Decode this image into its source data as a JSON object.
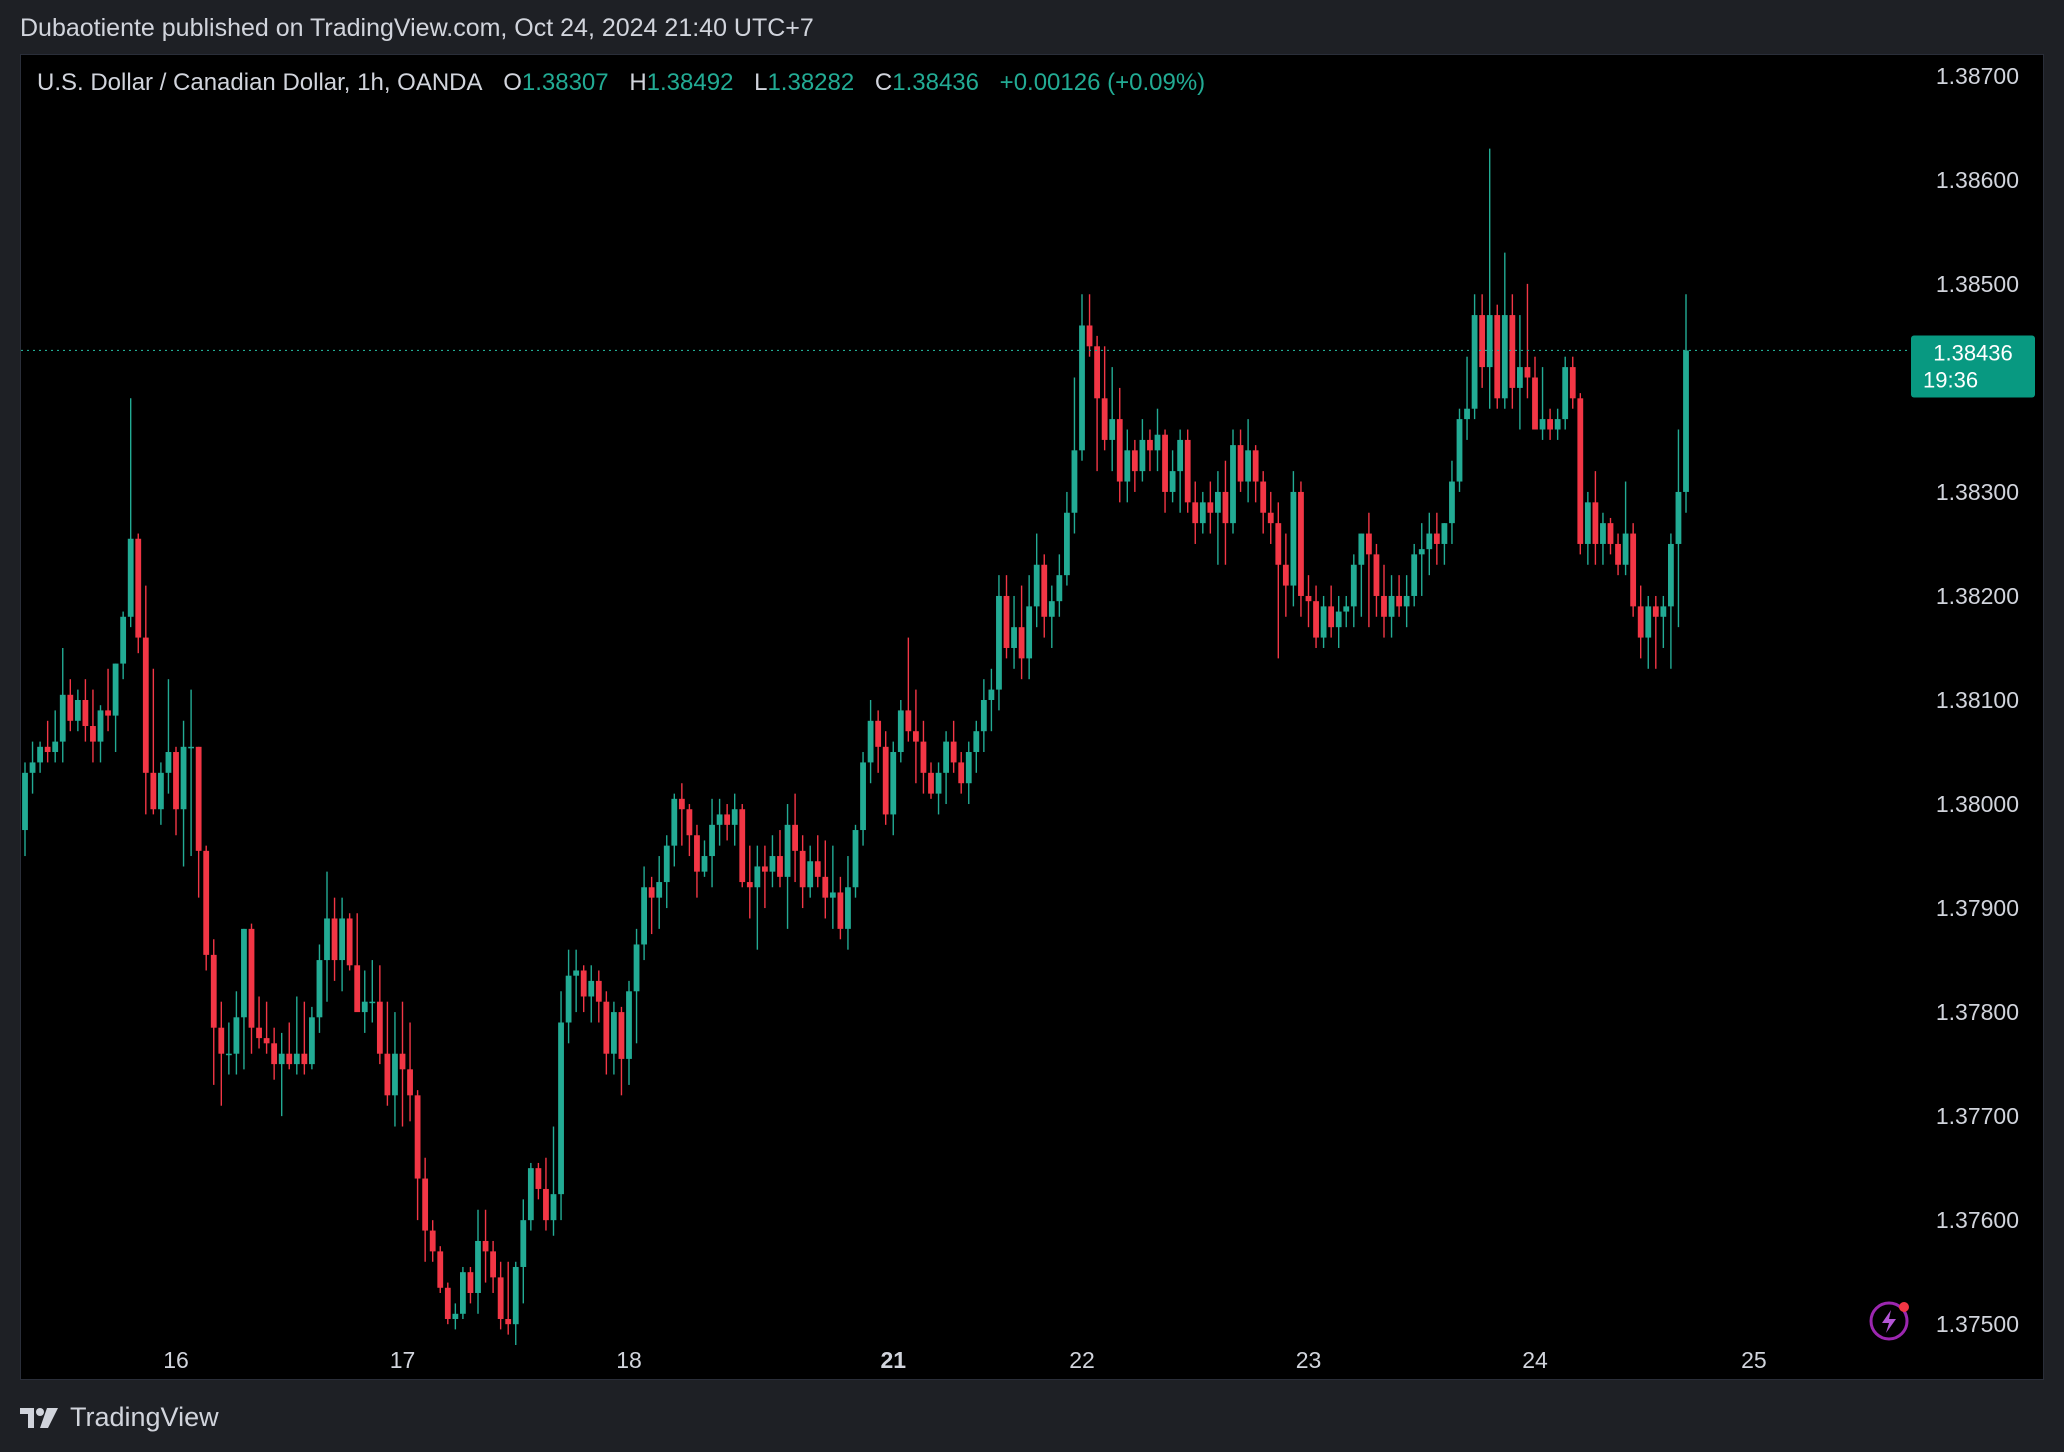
{
  "header": {
    "publisher_line": "Dubaotiente published on TradingView.com, Oct 24, 2024 21:40 UTC+7"
  },
  "legend": {
    "symbol": "U.S. Dollar / Canadian Dollar, 1h, OANDA",
    "open_label": "O",
    "open": "1.38307",
    "high_label": "H",
    "high": "1.38492",
    "low_label": "L",
    "low": "1.38282",
    "close_label": "C",
    "close": "1.38436",
    "change": "+0.00126 (+0.09%)"
  },
  "price_tag": {
    "price": "1.38436",
    "countdown": "19:36"
  },
  "footer": {
    "brand": "TradingView"
  },
  "colors": {
    "up": "#22ab94",
    "down": "#f23645",
    "background": "#000000",
    "text": "#d1d4dc"
  },
  "icons": {
    "footer_logo": "tradingview-logo-icon",
    "replay": "lightning-bolt-icon"
  },
  "chart_data": {
    "type": "candlestick",
    "interval": "1h",
    "ylim": [
      1.3748,
      1.3872
    ],
    "y_ticks": [
      "1.38700",
      "1.38600",
      "1.38500",
      "1.38400",
      "1.38300",
      "1.38200",
      "1.38100",
      "1.38000",
      "1.37900",
      "1.37800",
      "1.37700",
      "1.37600",
      "1.37500"
    ],
    "x_ticks": [
      {
        "label": "16",
        "bar": 20,
        "bold": false
      },
      {
        "label": "17",
        "bar": 50,
        "bold": false
      },
      {
        "label": "18",
        "bar": 80,
        "bold": false
      },
      {
        "label": "21",
        "bar": 115,
        "bold": true
      },
      {
        "label": "22",
        "bar": 140,
        "bold": false
      },
      {
        "label": "23",
        "bar": 170,
        "bold": false
      },
      {
        "label": "24",
        "bar": 200,
        "bold": false
      },
      {
        "label": "25",
        "bar": 229,
        "bold": false
      }
    ],
    "last_price": 1.38436,
    "grid": false,
    "candles": [
      [
        1.37975,
        1.3804,
        1.3795,
        1.3803
      ],
      [
        1.3803,
        1.3806,
        1.3801,
        1.3804
      ],
      [
        1.3804,
        1.3806,
        1.3803,
        1.38055
      ],
      [
        1.38055,
        1.3808,
        1.3804,
        1.3805
      ],
      [
        1.3805,
        1.3809,
        1.3804,
        1.3806
      ],
      [
        1.3806,
        1.3815,
        1.3804,
        1.38105
      ],
      [
        1.38105,
        1.3812,
        1.3807,
        1.3808
      ],
      [
        1.3808,
        1.3811,
        1.3807,
        1.381
      ],
      [
        1.381,
        1.3812,
        1.3806,
        1.38075
      ],
      [
        1.38075,
        1.3811,
        1.3804,
        1.3806
      ],
      [
        1.3806,
        1.38095,
        1.3804,
        1.3809
      ],
      [
        1.3809,
        1.3813,
        1.3807,
        1.38085
      ],
      [
        1.38085,
        1.38135,
        1.3805,
        1.38135
      ],
      [
        1.38135,
        1.38185,
        1.3812,
        1.3818
      ],
      [
        1.3818,
        1.3839,
        1.3817,
        1.38255
      ],
      [
        1.38255,
        1.3826,
        1.38145,
        1.3816
      ],
      [
        1.3816,
        1.3821,
        1.3799,
        1.3803
      ],
      [
        1.3803,
        1.3813,
        1.3799,
        1.37995
      ],
      [
        1.37995,
        1.3804,
        1.3798,
        1.3803
      ],
      [
        1.3803,
        1.3812,
        1.3801,
        1.3805
      ],
      [
        1.3805,
        1.38055,
        1.3797,
        1.37995
      ],
      [
        1.37995,
        1.3808,
        1.3794,
        1.38055
      ],
      [
        1.38055,
        1.3811,
        1.3795,
        1.38055
      ],
      [
        1.38055,
        1.38055,
        1.3791,
        1.37955
      ],
      [
        1.37955,
        1.3796,
        1.3784,
        1.37855
      ],
      [
        1.37855,
        1.3787,
        1.3773,
        1.37785
      ],
      [
        1.37785,
        1.3781,
        1.3771,
        1.3776
      ],
      [
        1.3776,
        1.3779,
        1.3774,
        1.3776
      ],
      [
        1.3776,
        1.3782,
        1.3774,
        1.37795
      ],
      [
        1.37795,
        1.3788,
        1.37745,
        1.3788
      ],
      [
        1.3788,
        1.37885,
        1.3776,
        1.37785
      ],
      [
        1.37785,
        1.37815,
        1.37765,
        1.37775
      ],
      [
        1.37775,
        1.3781,
        1.3776,
        1.3777
      ],
      [
        1.3777,
        1.37785,
        1.37735,
        1.3775
      ],
      [
        1.3775,
        1.3778,
        1.377,
        1.3776
      ],
      [
        1.3776,
        1.3779,
        1.37745,
        1.3775
      ],
      [
        1.3775,
        1.37815,
        1.3774,
        1.3776
      ],
      [
        1.3776,
        1.3781,
        1.3774,
        1.3775
      ],
      [
        1.3775,
        1.37805,
        1.37745,
        1.37795
      ],
      [
        1.37795,
        1.37865,
        1.3778,
        1.3785
      ],
      [
        1.3785,
        1.37935,
        1.3781,
        1.3789
      ],
      [
        1.3789,
        1.3791,
        1.3783,
        1.3785
      ],
      [
        1.3785,
        1.3791,
        1.3782,
        1.3789
      ],
      [
        1.3789,
        1.37895,
        1.3784,
        1.37845
      ],
      [
        1.37845,
        1.37895,
        1.3781,
        1.378
      ],
      [
        1.378,
        1.3784,
        1.3778,
        1.3781
      ],
      [
        1.3781,
        1.3785,
        1.3779,
        1.3781
      ],
      [
        1.3781,
        1.37845,
        1.3775,
        1.3776
      ],
      [
        1.3776,
        1.3781,
        1.3771,
        1.3772
      ],
      [
        1.3772,
        1.378,
        1.3769,
        1.3776
      ],
      [
        1.3776,
        1.3781,
        1.3769,
        1.37745
      ],
      [
        1.37745,
        1.3779,
        1.37695,
        1.3772
      ],
      [
        1.3772,
        1.37725,
        1.376,
        1.3764
      ],
      [
        1.3764,
        1.3766,
        1.3756,
        1.3759
      ],
      [
        1.3759,
        1.376,
        1.3756,
        1.3757
      ],
      [
        1.3757,
        1.37575,
        1.3753,
        1.37535
      ],
      [
        1.37535,
        1.3754,
        1.375,
        1.37505
      ],
      [
        1.37505,
        1.3752,
        1.37495,
        1.3751
      ],
      [
        1.3751,
        1.37555,
        1.37505,
        1.3755
      ],
      [
        1.3755,
        1.37555,
        1.3752,
        1.3753
      ],
      [
        1.3753,
        1.3761,
        1.3751,
        1.3758
      ],
      [
        1.3758,
        1.3761,
        1.3754,
        1.3757
      ],
      [
        1.3757,
        1.3758,
        1.3753,
        1.37545
      ],
      [
        1.37545,
        1.3756,
        1.37495,
        1.37505
      ],
      [
        1.37505,
        1.3756,
        1.3749,
        1.375
      ],
      [
        1.375,
        1.3756,
        1.3748,
        1.37555
      ],
      [
        1.37555,
        1.3762,
        1.3752,
        1.376
      ],
      [
        1.376,
        1.37655,
        1.3759,
        1.3765
      ],
      [
        1.3765,
        1.37655,
        1.3762,
        1.3763
      ],
      [
        1.3763,
        1.3766,
        1.3759,
        1.376
      ],
      [
        1.376,
        1.3769,
        1.37585,
        1.37625
      ],
      [
        1.37625,
        1.3782,
        1.376,
        1.3779
      ],
      [
        1.3779,
        1.3786,
        1.3777,
        1.37835
      ],
      [
        1.37835,
        1.3786,
        1.378,
        1.3784
      ],
      [
        1.3784,
        1.37845,
        1.378,
        1.37815
      ],
      [
        1.37815,
        1.37845,
        1.3779,
        1.3783
      ],
      [
        1.3783,
        1.3784,
        1.3779,
        1.3781
      ],
      [
        1.3781,
        1.3782,
        1.3774,
        1.3776
      ],
      [
        1.3776,
        1.3781,
        1.3774,
        1.378
      ],
      [
        1.378,
        1.37805,
        1.3772,
        1.37755
      ],
      [
        1.37755,
        1.3783,
        1.3773,
        1.3782
      ],
      [
        1.3782,
        1.3788,
        1.3777,
        1.37865
      ],
      [
        1.37865,
        1.3794,
        1.3785,
        1.3792
      ],
      [
        1.3792,
        1.3793,
        1.37875,
        1.3791
      ],
      [
        1.3791,
        1.3795,
        1.3788,
        1.37925
      ],
      [
        1.37925,
        1.3797,
        1.379,
        1.3796
      ],
      [
        1.3796,
        1.3801,
        1.3794,
        1.38005
      ],
      [
        1.38005,
        1.3802,
        1.3796,
        1.37995
      ],
      [
        1.37995,
        1.38,
        1.3795,
        1.3797
      ],
      [
        1.3797,
        1.3798,
        1.3791,
        1.37935
      ],
      [
        1.37935,
        1.37965,
        1.3793,
        1.3795
      ],
      [
        1.3795,
        1.38005,
        1.3792,
        1.3798
      ],
      [
        1.3798,
        1.38005,
        1.3796,
        1.3799
      ],
      [
        1.3799,
        1.38,
        1.37965,
        1.3798
      ],
      [
        1.3798,
        1.3801,
        1.3796,
        1.37995
      ],
      [
        1.37995,
        1.38,
        1.3792,
        1.37925
      ],
      [
        1.37925,
        1.3796,
        1.3789,
        1.3792
      ],
      [
        1.3792,
        1.3796,
        1.3786,
        1.3794
      ],
      [
        1.3794,
        1.3796,
        1.379,
        1.37935
      ],
      [
        1.37935,
        1.3797,
        1.3792,
        1.3795
      ],
      [
        1.3795,
        1.37975,
        1.3792,
        1.3793
      ],
      [
        1.3793,
        1.38,
        1.3788,
        1.3798
      ],
      [
        1.3798,
        1.3801,
        1.37925,
        1.37955
      ],
      [
        1.37955,
        1.3797,
        1.379,
        1.3792
      ],
      [
        1.3792,
        1.3796,
        1.3791,
        1.37945
      ],
      [
        1.37945,
        1.3797,
        1.3792,
        1.3793
      ],
      [
        1.3793,
        1.37965,
        1.3789,
        1.3791
      ],
      [
        1.3791,
        1.3796,
        1.3788,
        1.37915
      ],
      [
        1.37915,
        1.3793,
        1.3787,
        1.3788
      ],
      [
        1.3788,
        1.3795,
        1.3786,
        1.3792
      ],
      [
        1.3792,
        1.3798,
        1.3791,
        1.37975
      ],
      [
        1.37975,
        1.3805,
        1.3796,
        1.3804
      ],
      [
        1.3804,
        1.381,
        1.3802,
        1.3808
      ],
      [
        1.3808,
        1.3809,
        1.3803,
        1.38055
      ],
      [
        1.38055,
        1.3807,
        1.3798,
        1.3799
      ],
      [
        1.3799,
        1.3806,
        1.3797,
        1.3805
      ],
      [
        1.3805,
        1.381,
        1.3804,
        1.3809
      ],
      [
        1.3809,
        1.3816,
        1.3806,
        1.3807
      ],
      [
        1.3807,
        1.3811,
        1.3802,
        1.3806
      ],
      [
        1.3806,
        1.3808,
        1.3801,
        1.3803
      ],
      [
        1.3803,
        1.3804,
        1.38005,
        1.3801
      ],
      [
        1.3801,
        1.3804,
        1.3799,
        1.3803
      ],
      [
        1.3803,
        1.3807,
        1.38,
        1.3806
      ],
      [
        1.3806,
        1.3808,
        1.3803,
        1.3804
      ],
      [
        1.3804,
        1.3805,
        1.3801,
        1.3802
      ],
      [
        1.3802,
        1.3806,
        1.38,
        1.3805
      ],
      [
        1.3805,
        1.3808,
        1.3803,
        1.3807
      ],
      [
        1.3807,
        1.3812,
        1.3805,
        1.381
      ],
      [
        1.381,
        1.3813,
        1.3807,
        1.3811
      ],
      [
        1.3811,
        1.3822,
        1.3809,
        1.382
      ],
      [
        1.382,
        1.3822,
        1.3814,
        1.3815
      ],
      [
        1.3815,
        1.382,
        1.3813,
        1.3817
      ],
      [
        1.3817,
        1.3821,
        1.3812,
        1.3814
      ],
      [
        1.3814,
        1.3822,
        1.3812,
        1.3819
      ],
      [
        1.3819,
        1.3826,
        1.3817,
        1.3823
      ],
      [
        1.3823,
        1.3824,
        1.3816,
        1.3818
      ],
      [
        1.3818,
        1.3821,
        1.3815,
        1.38195
      ],
      [
        1.38195,
        1.3824,
        1.3818,
        1.3822
      ],
      [
        1.3822,
        1.383,
        1.3821,
        1.3828
      ],
      [
        1.3828,
        1.3841,
        1.3826,
        1.3834
      ],
      [
        1.3834,
        1.3849,
        1.3833,
        1.3846
      ],
      [
        1.3846,
        1.3849,
        1.3843,
        1.3844
      ],
      [
        1.3844,
        1.3845,
        1.3832,
        1.3839
      ],
      [
        1.3839,
        1.3844,
        1.3834,
        1.3835
      ],
      [
        1.3835,
        1.3842,
        1.3832,
        1.3837
      ],
      [
        1.3837,
        1.384,
        1.3829,
        1.3831
      ],
      [
        1.3831,
        1.3836,
        1.3829,
        1.3834
      ],
      [
        1.3834,
        1.3835,
        1.383,
        1.3832
      ],
      [
        1.3832,
        1.3837,
        1.3831,
        1.3835
      ],
      [
        1.3835,
        1.3836,
        1.3832,
        1.3834
      ],
      [
        1.3834,
        1.3838,
        1.3832,
        1.38355
      ],
      [
        1.38355,
        1.3836,
        1.3828,
        1.383
      ],
      [
        1.383,
        1.3834,
        1.3829,
        1.3832
      ],
      [
        1.3832,
        1.3836,
        1.3828,
        1.3835
      ],
      [
        1.3835,
        1.3836,
        1.3828,
        1.3829
      ],
      [
        1.3829,
        1.3831,
        1.3825,
        1.3827
      ],
      [
        1.3827,
        1.383,
        1.3826,
        1.3829
      ],
      [
        1.3829,
        1.3831,
        1.3826,
        1.3828
      ],
      [
        1.3828,
        1.3832,
        1.3823,
        1.383
      ],
      [
        1.383,
        1.3833,
        1.3823,
        1.3827
      ],
      [
        1.3827,
        1.3836,
        1.3826,
        1.38345
      ],
      [
        1.38345,
        1.3836,
        1.383,
        1.3831
      ],
      [
        1.3831,
        1.3837,
        1.3829,
        1.3834
      ],
      [
        1.3834,
        1.38345,
        1.3829,
        1.3831
      ],
      [
        1.3831,
        1.3832,
        1.3826,
        1.3828
      ],
      [
        1.3828,
        1.383,
        1.3825,
        1.3827
      ],
      [
        1.3827,
        1.3829,
        1.3814,
        1.3823
      ],
      [
        1.3823,
        1.3826,
        1.3818,
        1.3821
      ],
      [
        1.3821,
        1.3832,
        1.3819,
        1.383
      ],
      [
        1.383,
        1.3831,
        1.3818,
        1.382
      ],
      [
        1.382,
        1.3822,
        1.3817,
        1.38195
      ],
      [
        1.38195,
        1.3821,
        1.3815,
        1.3816
      ],
      [
        1.3816,
        1.382,
        1.3815,
        1.3819
      ],
      [
        1.3819,
        1.3821,
        1.3816,
        1.3817
      ],
      [
        1.3817,
        1.382,
        1.3815,
        1.38185
      ],
      [
        1.38185,
        1.382,
        1.3817,
        1.3819
      ],
      [
        1.3819,
        1.3824,
        1.3817,
        1.3823
      ],
      [
        1.3823,
        1.3826,
        1.3818,
        1.3826
      ],
      [
        1.3826,
        1.3828,
        1.3817,
        1.3824
      ],
      [
        1.3824,
        1.3825,
        1.3818,
        1.382
      ],
      [
        1.382,
        1.3823,
        1.3816,
        1.3818
      ],
      [
        1.3818,
        1.3822,
        1.3816,
        1.382
      ],
      [
        1.382,
        1.3822,
        1.3818,
        1.3819
      ],
      [
        1.3819,
        1.3822,
        1.3817,
        1.382
      ],
      [
        1.382,
        1.3825,
        1.3819,
        1.3824
      ],
      [
        1.3824,
        1.3827,
        1.382,
        1.38245
      ],
      [
        1.38245,
        1.3828,
        1.3822,
        1.3826
      ],
      [
        1.3826,
        1.3828,
        1.3823,
        1.3825
      ],
      [
        1.3825,
        1.3827,
        1.3823,
        1.3827
      ],
      [
        1.3827,
        1.3833,
        1.3825,
        1.3831
      ],
      [
        1.3831,
        1.3838,
        1.383,
        1.3837
      ],
      [
        1.3837,
        1.3843,
        1.3835,
        1.3838
      ],
      [
        1.3838,
        1.3849,
        1.3837,
        1.3847
      ],
      [
        1.3847,
        1.3849,
        1.384,
        1.3842
      ],
      [
        1.3842,
        1.3863,
        1.3838,
        1.3847
      ],
      [
        1.3847,
        1.3848,
        1.3838,
        1.3839
      ],
      [
        1.3839,
        1.3853,
        1.3838,
        1.3847
      ],
      [
        1.3847,
        1.3849,
        1.3838,
        1.384
      ],
      [
        1.384,
        1.3847,
        1.3836,
        1.3842
      ],
      [
        1.3842,
        1.385,
        1.3839,
        1.3841
      ],
      [
        1.3841,
        1.3843,
        1.3836,
        1.3836
      ],
      [
        1.3836,
        1.3842,
        1.3835,
        1.3837
      ],
      [
        1.3837,
        1.3838,
        1.3835,
        1.3836
      ],
      [
        1.3836,
        1.3838,
        1.3835,
        1.3837
      ],
      [
        1.3837,
        1.3843,
        1.3836,
        1.3842
      ],
      [
        1.3842,
        1.3843,
        1.3838,
        1.3839
      ],
      [
        1.3839,
        1.38395,
        1.3824,
        1.3825
      ],
      [
        1.3825,
        1.383,
        1.3823,
        1.3829
      ],
      [
        1.3829,
        1.3832,
        1.3823,
        1.3825
      ],
      [
        1.3825,
        1.3828,
        1.3823,
        1.3827
      ],
      [
        1.3827,
        1.38275,
        1.3824,
        1.3825
      ],
      [
        1.3825,
        1.3826,
        1.3822,
        1.3823
      ],
      [
        1.3823,
        1.3831,
        1.3822,
        1.3826
      ],
      [
        1.3826,
        1.3827,
        1.3818,
        1.3819
      ],
      [
        1.3819,
        1.3821,
        1.3814,
        1.3816
      ],
      [
        1.3816,
        1.382,
        1.3813,
        1.3819
      ],
      [
        1.3819,
        1.382,
        1.3813,
        1.3818
      ],
      [
        1.3818,
        1.382,
        1.3815,
        1.3819
      ],
      [
        1.3819,
        1.3826,
        1.3813,
        1.3825
      ],
      [
        1.3825,
        1.3836,
        1.3817,
        1.383
      ],
      [
        1.383,
        1.3849,
        1.3828,
        1.38436
      ]
    ]
  }
}
